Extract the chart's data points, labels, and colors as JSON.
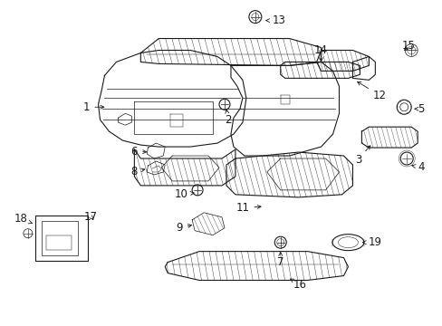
{
  "background_color": "#ffffff",
  "line_color": "#1a1a1a",
  "fig_w": 4.89,
  "fig_h": 3.6,
  "dpi": 100
}
